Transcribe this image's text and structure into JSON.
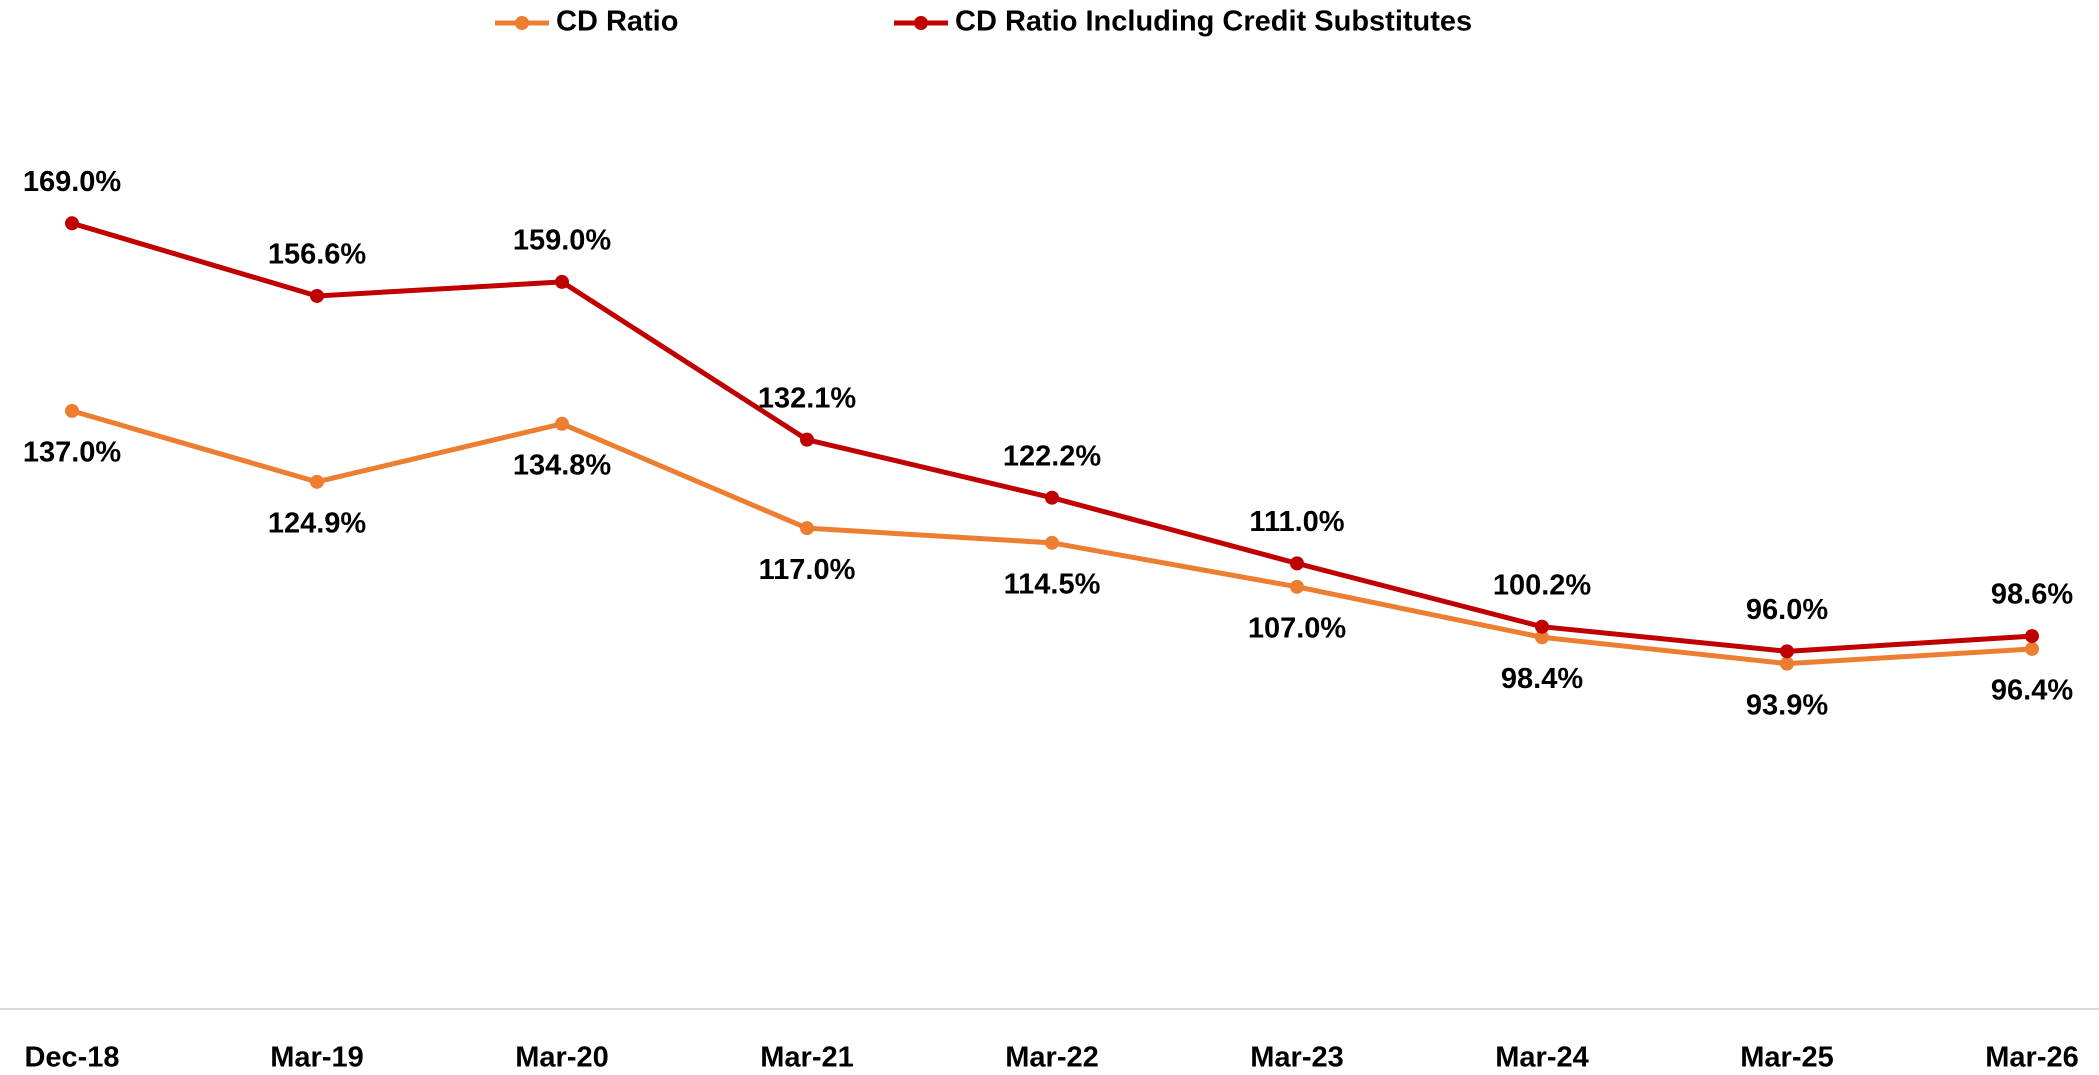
{
  "chart_data": {
    "type": "line",
    "categories": [
      "Dec-18",
      "Mar-19",
      "Mar-20",
      "Mar-21",
      "Mar-22",
      "Mar-23",
      "Mar-24",
      "Mar-25",
      "Mar-26"
    ],
    "series": [
      {
        "name": "CD Ratio",
        "color": "#ed7d31",
        "values": [
          137.0,
          124.9,
          134.8,
          117.0,
          114.5,
          107.0,
          98.4,
          93.9,
          96.4
        ],
        "value_labels": [
          "137.0%",
          "124.9%",
          "134.8%",
          "117.0%",
          "114.5%",
          "107.0%",
          "98.4%",
          "93.9%",
          "96.4%"
        ]
      },
      {
        "name": "CD Ratio Including Credit Substitutes",
        "color": "#c00000",
        "values": [
          169.0,
          156.6,
          159.0,
          132.1,
          122.2,
          111.0,
          100.2,
          96.0,
          98.6
        ],
        "value_labels": [
          "169.0%",
          "156.6%",
          "159.0%",
          "132.1%",
          "122.2%",
          "111.0%",
          "100.2%",
          "96.0%",
          "98.6%"
        ]
      }
    ],
    "ylim": [
      35,
      200
    ],
    "legend": "top"
  }
}
